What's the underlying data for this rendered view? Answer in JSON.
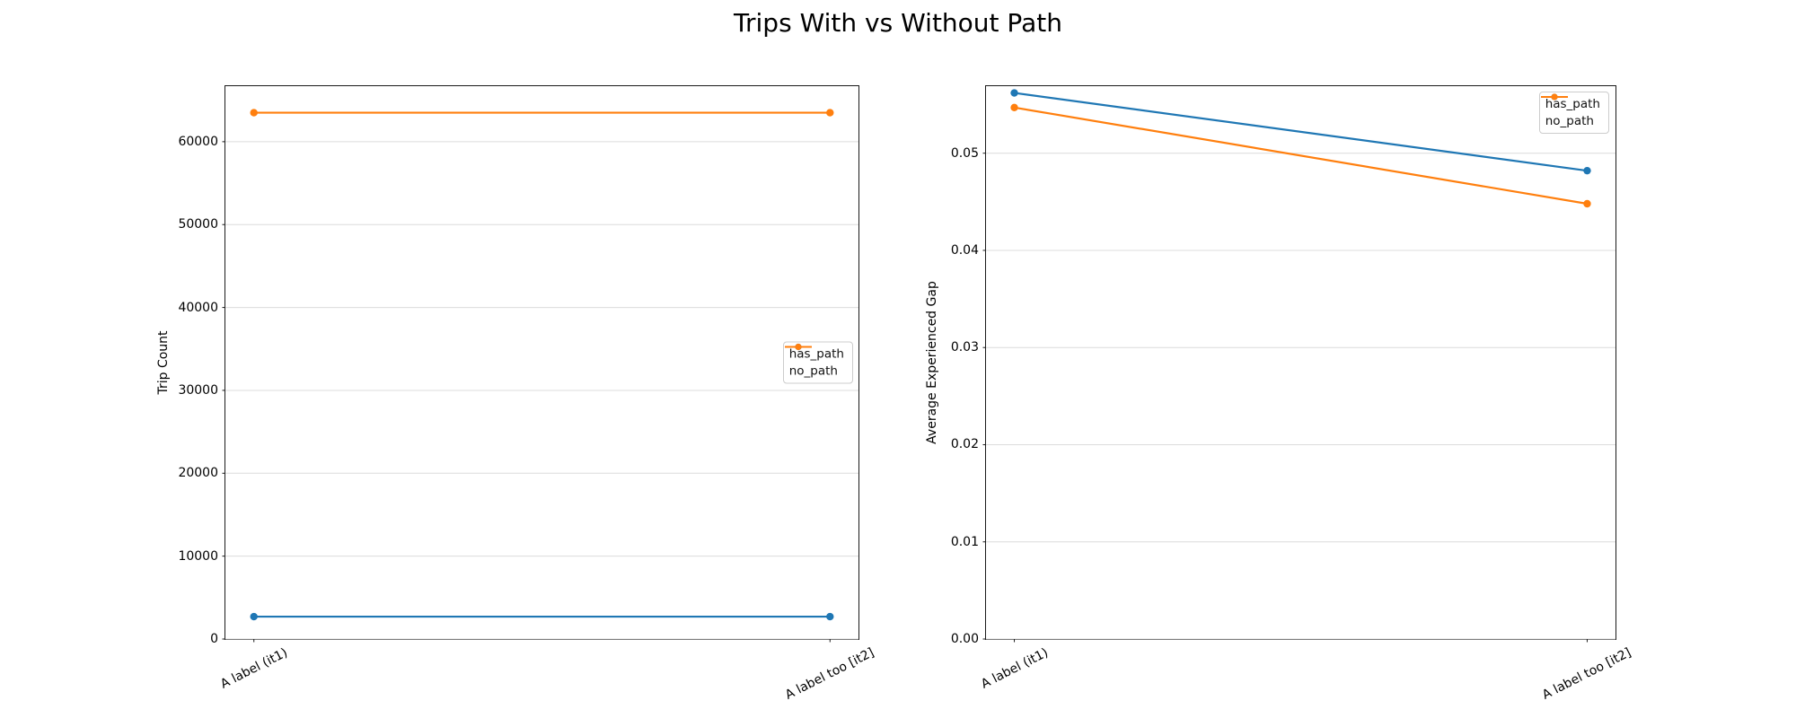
{
  "figure": {
    "title": "Trips With vs Without Path"
  },
  "colors": {
    "has_path": "#1f77b4",
    "no_path": "#ff7f0e",
    "grid": "#dcdcdc",
    "spine": "#1a1a1a"
  },
  "chart_data": [
    {
      "type": "line",
      "title": "",
      "xlabel": "",
      "ylabel": "Trip Count",
      "categories": [
        "A label (it1)",
        "A label too [it2]"
      ],
      "series": [
        {
          "name": "has_path",
          "color": "#1f77b4",
          "values": [
            2700,
            2700
          ]
        },
        {
          "name": "no_path",
          "color": "#ff7f0e",
          "values": [
            63500,
            63500
          ]
        }
      ],
      "ylim": [
        0,
        66700
      ],
      "yticks": {
        "values": [
          0,
          10000,
          20000,
          30000,
          40000,
          50000,
          60000
        ],
        "labels": [
          "0",
          "10000",
          "20000",
          "30000",
          "40000",
          "50000",
          "60000"
        ]
      },
      "grid": "horizontal",
      "legend": {
        "position": "center-right",
        "entries": [
          "has_path",
          "no_path"
        ]
      }
    },
    {
      "type": "line",
      "title": "",
      "xlabel": "",
      "ylabel": "Average Experienced Gap",
      "categories": [
        "A label (it1)",
        "A label too [it2]"
      ],
      "series": [
        {
          "name": "has_path",
          "color": "#1f77b4",
          "values": [
            0.0562,
            0.0482
          ]
        },
        {
          "name": "no_path",
          "color": "#ff7f0e",
          "values": [
            0.0547,
            0.0448
          ]
        }
      ],
      "ylim": [
        0,
        0.0569
      ],
      "yticks": {
        "values": [
          0,
          0.01,
          0.02,
          0.03,
          0.04,
          0.05
        ],
        "labels": [
          "0.00",
          "0.01",
          "0.02",
          "0.03",
          "0.04",
          "0.05"
        ]
      },
      "grid": "horizontal",
      "legend": {
        "position": "upper-right",
        "entries": [
          "has_path",
          "no_path"
        ]
      }
    }
  ]
}
